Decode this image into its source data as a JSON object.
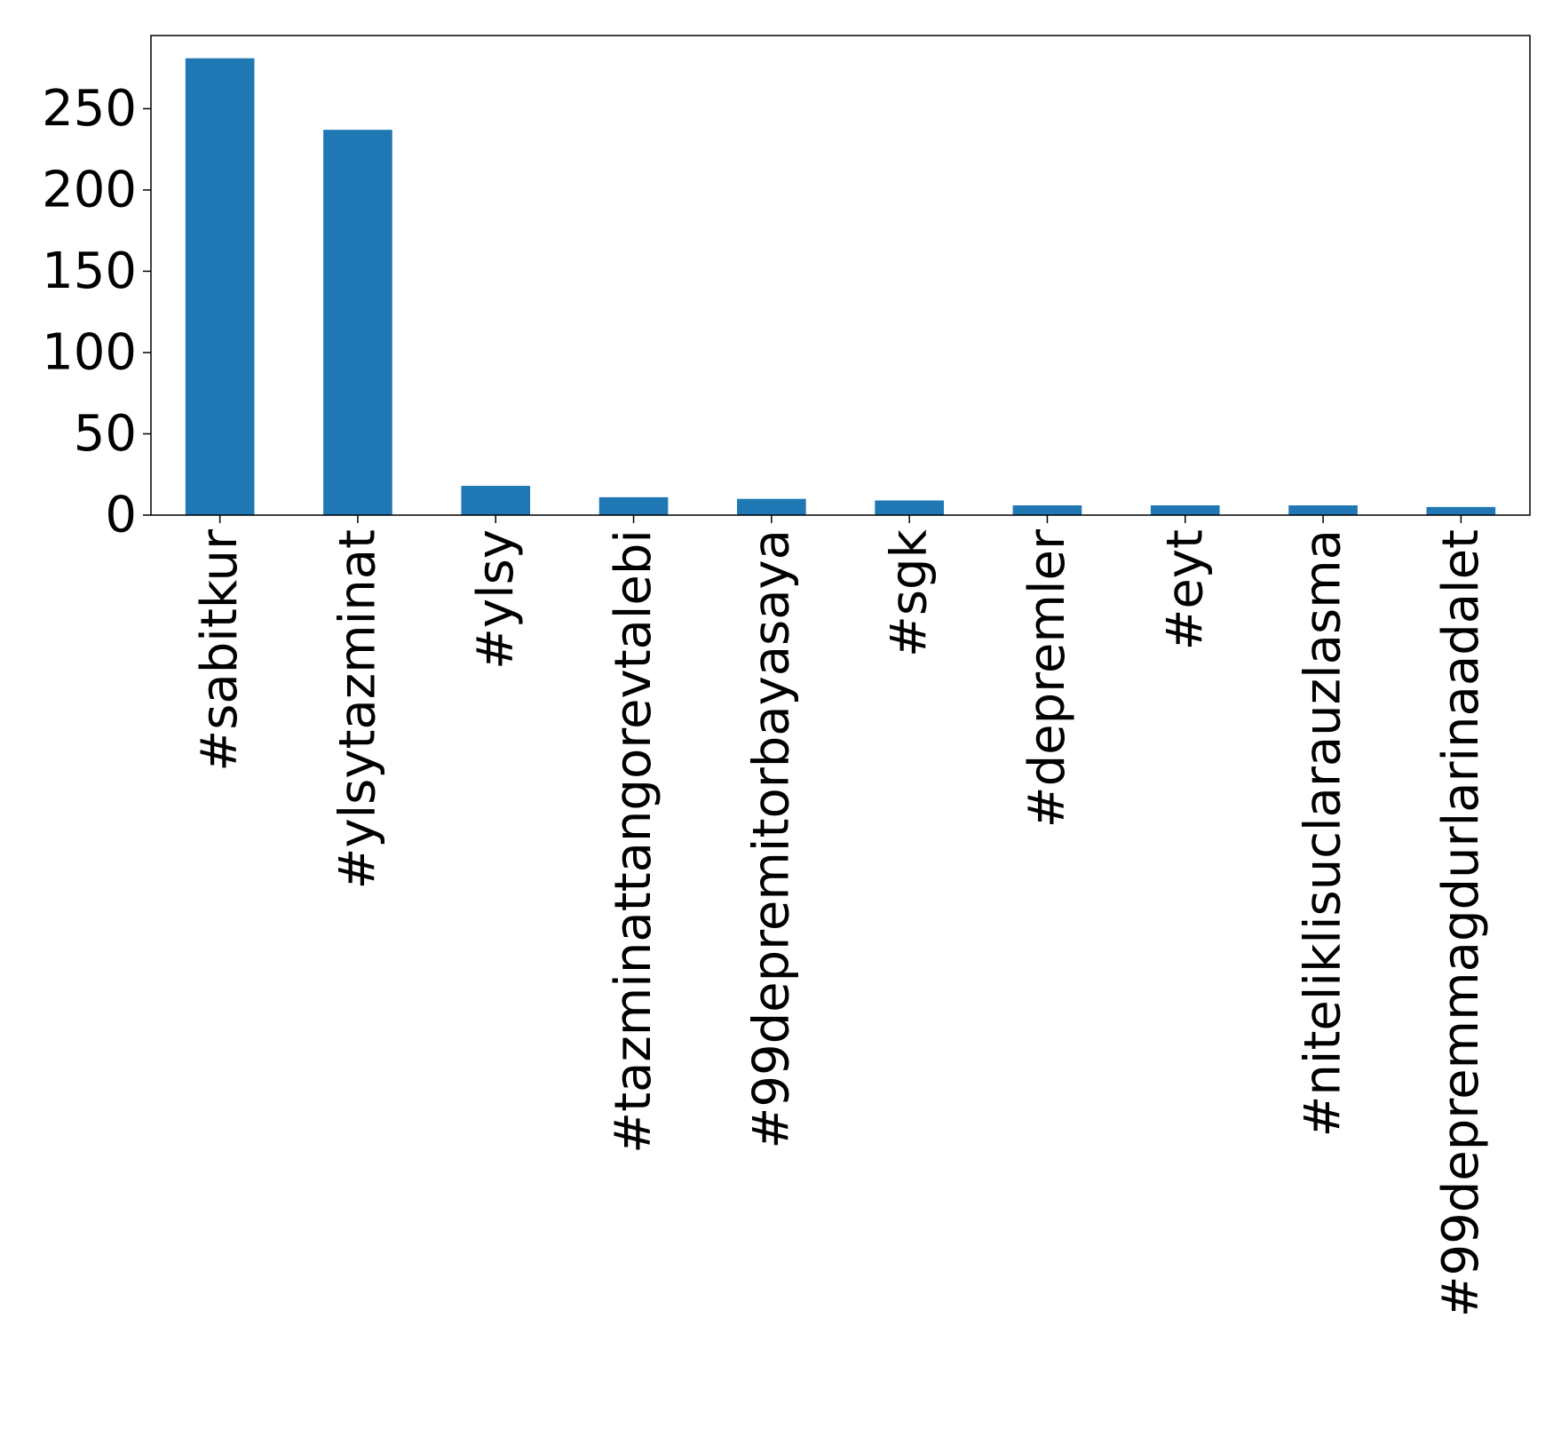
{
  "chart_data": {
    "type": "bar",
    "title": "",
    "xlabel": "",
    "ylabel": "",
    "categories": [
      "#sabitkur",
      "#ylsytazminat",
      "#ylsy",
      "#tazminattangorevtalebi",
      "#99depremitorbayasaya",
      "#sgk",
      "#depremler",
      "#eyt",
      "#niteliklisuclarauzlasma",
      "#99depremmagdurlarinaadalet"
    ],
    "values": [
      281,
      237,
      18,
      11,
      10,
      9,
      6,
      6,
      6,
      5
    ],
    "ylim": [
      0,
      295
    ],
    "yticks": [
      0,
      50,
      100,
      150,
      200,
      250
    ],
    "bar_color": "#1f77b4",
    "grid": false,
    "legend": "none"
  }
}
